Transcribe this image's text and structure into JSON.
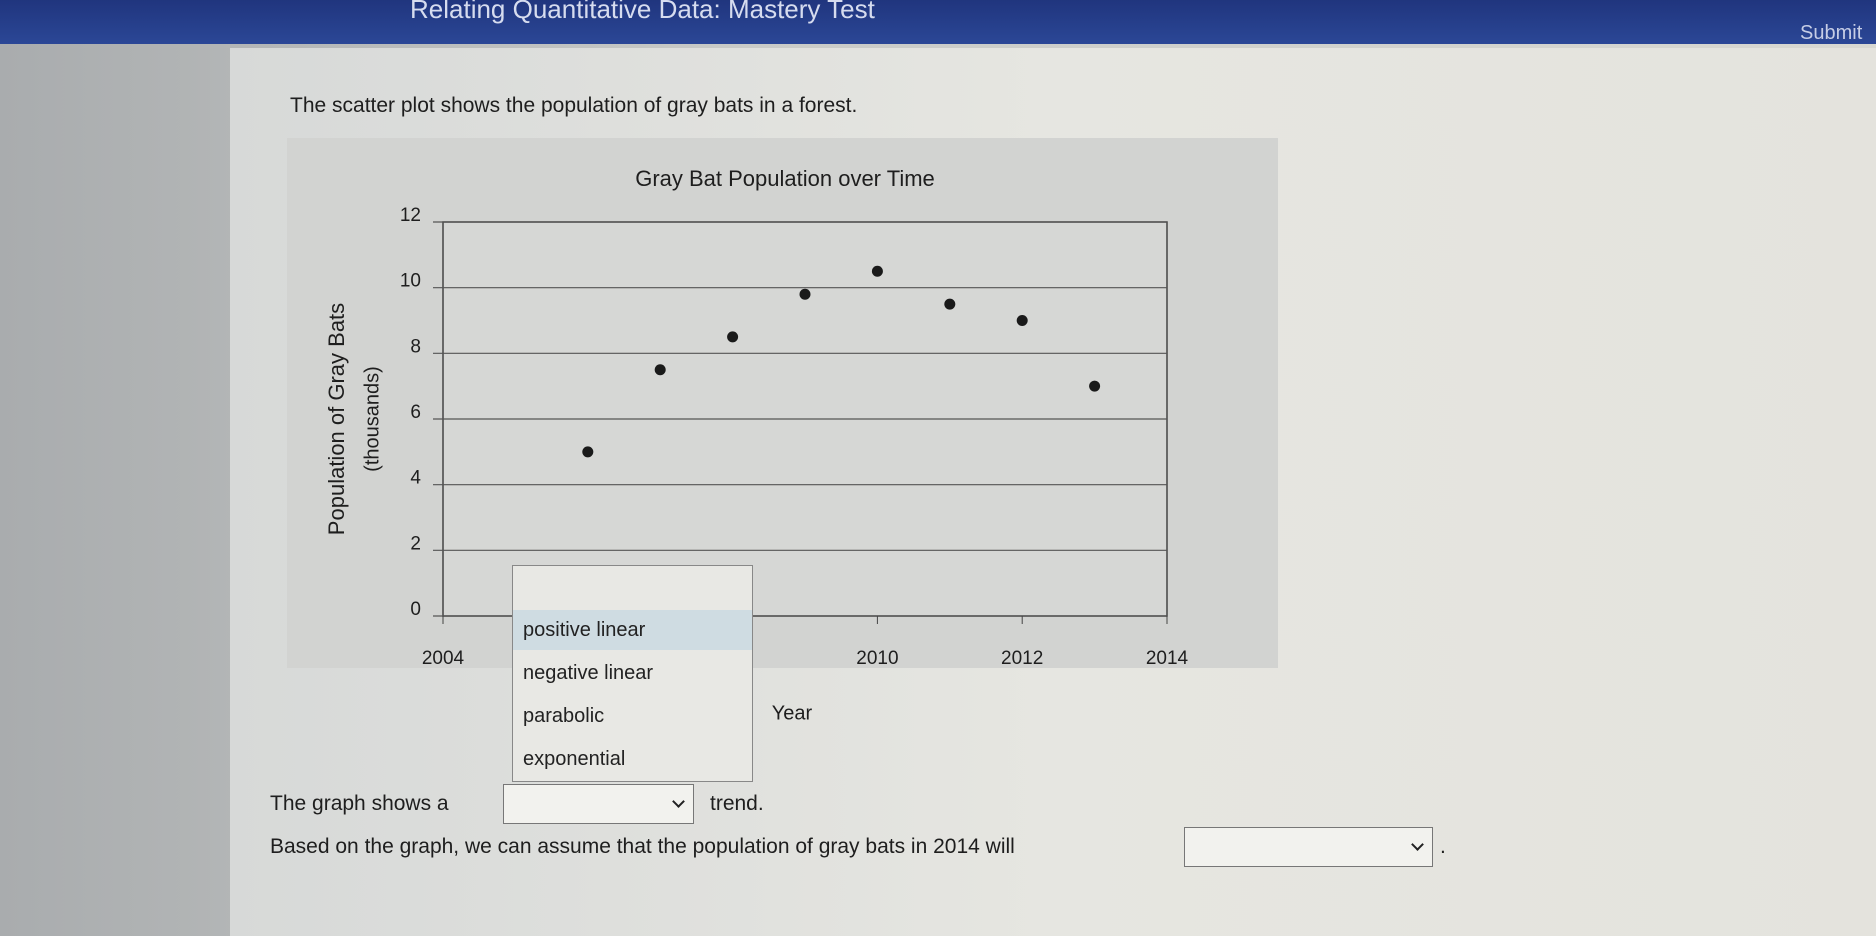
{
  "header": {
    "title": "Relating Quantitative Data: Mastery Test",
    "submit": "Submit"
  },
  "question": {
    "prompt": "The scatter plot shows the population of gray bats in a forest.",
    "dropdown_options": [
      "positive linear",
      "negative linear",
      "parabolic",
      "exponential"
    ],
    "sentence1": {
      "before": "The graph shows a",
      "after": "trend."
    },
    "sentence2": {
      "before": "Based on the graph, we can assume that the population of gray bats in 2014 will",
      "after": "."
    }
  },
  "chart_data": {
    "type": "scatter",
    "title": "Gray Bat Population over Time",
    "xlabel": "Year",
    "ylabel": "Population of Gray Bats",
    "ylabel_unit": "(thousands)",
    "x": [
      2006,
      2007,
      2008,
      2009,
      2010,
      2011,
      2012,
      2013
    ],
    "values": [
      5,
      7.5,
      8.5,
      9.8,
      10.5,
      9.5,
      9,
      7
    ],
    "color": "#1a1a1a",
    "xlim": [
      2004,
      2014
    ],
    "xticks": [
      2004,
      2010,
      2012,
      2014
    ],
    "ylim": [
      0,
      12
    ],
    "yticks": [
      0,
      2,
      4,
      6,
      8,
      10,
      12
    ],
    "grid": true
  }
}
